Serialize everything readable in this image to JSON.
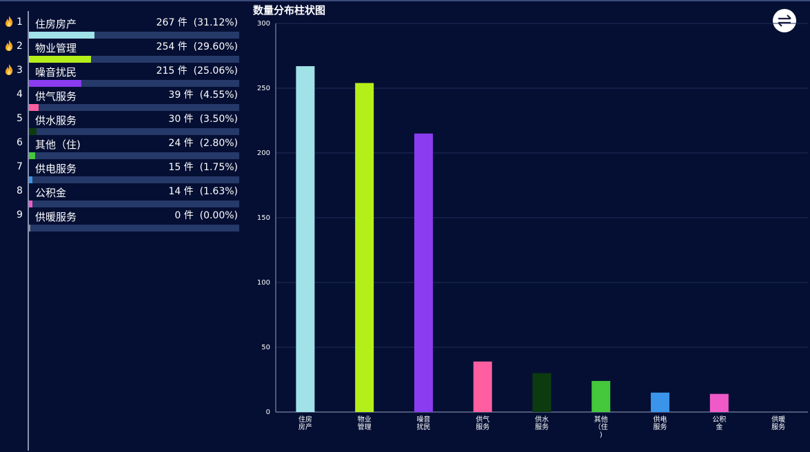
{
  "ranking": [
    {
      "rank": "1",
      "name": "住房房产",
      "value": "267 件",
      "pct": "(31.12%)",
      "ratio": 0.3112,
      "color": "#a0e2e8",
      "hot": true
    },
    {
      "rank": "2",
      "name": "物业管理",
      "value": "254 件",
      "pct": "(29.60%)",
      "ratio": 0.296,
      "color": "#b5ef1a",
      "hot": true
    },
    {
      "rank": "3",
      "name": "噪音扰民",
      "value": "215 件",
      "pct": "(25.06%)",
      "ratio": 0.2506,
      "color": "#8b3cf0",
      "hot": true
    },
    {
      "rank": "4",
      "name": "供气服务",
      "value": "39 件",
      "pct": "(4.55%)",
      "ratio": 0.0455,
      "color": "#ff5fa0",
      "hot": false
    },
    {
      "rank": "5",
      "name": "供水服务",
      "value": "30 件",
      "pct": "(3.50%)",
      "ratio": 0.035,
      "color": "#0d3b10",
      "hot": false
    },
    {
      "rank": "6",
      "name": "其他（住)",
      "value": "24 件",
      "pct": "(2.80%)",
      "ratio": 0.028,
      "color": "#45c83c",
      "hot": false
    },
    {
      "rank": "7",
      "name": "供电服务",
      "value": "15 件",
      "pct": "(1.75%)",
      "ratio": 0.0175,
      "color": "#3a94ea",
      "hot": false
    },
    {
      "rank": "8",
      "name": "公积金",
      "value": "14 件",
      "pct": "(1.63%)",
      "ratio": 0.0163,
      "color": "#f05ac8",
      "hot": false
    },
    {
      "rank": "9",
      "name": "供暖服务",
      "value": "0 件",
      "pct": "(0.00%)",
      "ratio": 0.0,
      "color": "#8a8a8a",
      "hot": false
    }
  ],
  "icons": {
    "hot": "fire-icon",
    "switch": "swap-arrows-icon"
  },
  "chart_data": {
    "type": "bar",
    "title": "数量分布柱状图",
    "categories": [
      "住房房产",
      "物业管理",
      "噪音扰民",
      "供气服务",
      "供水服务",
      "其他（住)",
      "供电服务",
      "公积金",
      "供暖服务"
    ],
    "x_tick_labels": [
      [
        "住房",
        "房产"
      ],
      [
        "物业",
        "管理"
      ],
      [
        "噪音",
        "扰民"
      ],
      [
        "供气",
        "服务"
      ],
      [
        "供水",
        "服务"
      ],
      [
        "其他",
        "（住",
        ")"
      ],
      [
        "供电",
        "服务"
      ],
      [
        "公积",
        "金"
      ],
      [
        "供暖",
        "服务"
      ]
    ],
    "values": [
      267,
      254,
      215,
      39,
      30,
      24,
      15,
      14,
      0
    ],
    "colors": [
      "#a0e2e8",
      "#b5ef1a",
      "#8b3cf0",
      "#ff5fa0",
      "#0d3b10",
      "#45c83c",
      "#3a94ea",
      "#f05ac8",
      "#8a8a8a"
    ],
    "ylim": [
      0,
      300
    ],
    "yticks": [
      0,
      50,
      100,
      150,
      200,
      250,
      300
    ],
    "grid": true
  }
}
